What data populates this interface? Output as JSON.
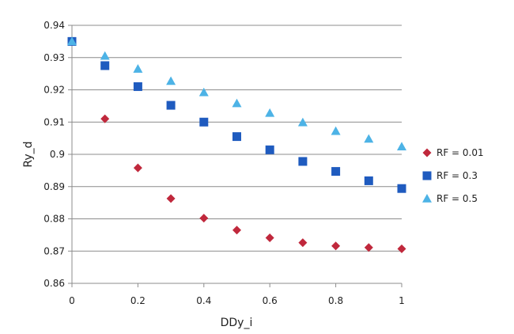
{
  "chart_data": {
    "type": "scatter",
    "title": "",
    "xlabel": "DDy_i",
    "ylabel": "Ry_d",
    "xlim": [
      0,
      1
    ],
    "ylim": [
      0.86,
      0.94
    ],
    "x_ticks": [
      "0",
      "0.2",
      "0.4",
      "0.6",
      "0.8",
      "1"
    ],
    "y_ticks": [
      "0.86",
      "0.87",
      "0.88",
      "0.89",
      "0.9",
      "0.91",
      "0.92",
      "0.93",
      "0.94"
    ],
    "grid": "horizontal",
    "legend_position": "right",
    "series": [
      {
        "name": "RF = 0.01",
        "marker": "diamond",
        "color": "#c0283c",
        "x": [
          0,
          0.1,
          0.2,
          0.3,
          0.4,
          0.5,
          0.6,
          0.7,
          0.8,
          0.9,
          1.0
        ],
        "y": [
          0.935,
          0.911,
          0.8958,
          0.8863,
          0.8802,
          0.8765,
          0.8741,
          0.8726,
          0.8716,
          0.8711,
          0.8707
        ]
      },
      {
        "name": "RF = 0.3",
        "marker": "square",
        "color": "#1f5bbf",
        "x": [
          0,
          0.1,
          0.2,
          0.3,
          0.4,
          0.5,
          0.6,
          0.7,
          0.8,
          0.9,
          1.0
        ],
        "y": [
          0.935,
          0.9275,
          0.921,
          0.9152,
          0.91,
          0.9055,
          0.9014,
          0.8978,
          0.8947,
          0.8918,
          0.8894
        ]
      },
      {
        "name": "RF = 0.5",
        "marker": "triangle",
        "color": "#4db3e6",
        "x": [
          0,
          0.1,
          0.2,
          0.3,
          0.4,
          0.5,
          0.6,
          0.7,
          0.8,
          0.9,
          1.0
        ],
        "y": [
          0.935,
          0.9305,
          0.9265,
          0.9227,
          0.9192,
          0.9158,
          0.9128,
          0.9099,
          0.9072,
          0.9048,
          0.9024
        ]
      }
    ]
  }
}
